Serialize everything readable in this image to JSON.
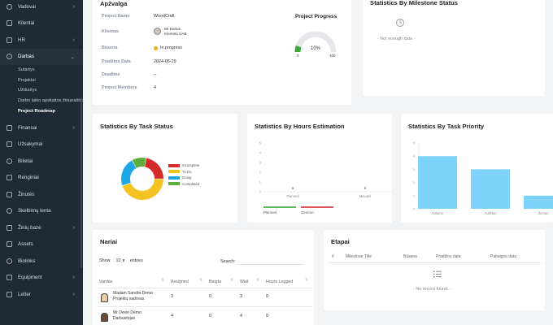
{
  "sidebar": {
    "items": [
      {
        "label": "Vadovai",
        "arrow": "›"
      },
      {
        "label": "Klientai",
        "arrow": ""
      },
      {
        "label": "HR",
        "arrow": "›"
      },
      {
        "label": "Darbas",
        "arrow": "⌄"
      },
      {
        "label": "Finansai",
        "arrow": "›"
      },
      {
        "label": "Užsakymai",
        "arrow": ""
      },
      {
        "label": "Bilietai",
        "arrow": ""
      },
      {
        "label": "Renginiai",
        "arrow": ""
      },
      {
        "label": "Žinutės",
        "arrow": ""
      },
      {
        "label": "Skelbimų lenta",
        "arrow": ""
      },
      {
        "label": "Žinių bazė",
        "arrow": "›"
      },
      {
        "label": "Assets",
        "arrow": ""
      },
      {
        "label": "Biolinks",
        "arrow": ""
      },
      {
        "label": "Equipment",
        "arrow": "›"
      },
      {
        "label": "Letter",
        "arrow": "›"
      }
    ],
    "subitems": [
      "Sutartys",
      "Projektai",
      "Užduotys",
      "Darbo laiko apskaitos žiniaraštis",
      "Project Roadmap"
    ]
  },
  "overview": {
    "title": "Apžvalga",
    "project_name_label": "Project Name",
    "project_name": "WoodCraft",
    "client_label": "Klientas",
    "client_name": "Mr Darius",
    "client_company": "Klemeta UAB",
    "status_label": "Būsena",
    "status": "In progress",
    "start_label": "Pradžios Data",
    "start_date": "2024-05-29",
    "deadline_label": "Deadline",
    "deadline": "--",
    "members_label": "Project Members",
    "members": "4",
    "progress_title": "Project Progress",
    "progress_percent": 10,
    "progress_text": "10%",
    "progress_min": "0",
    "progress_max": "100"
  },
  "milestone": {
    "title": "Statistics By Milestone Status",
    "empty": "- Not enough data -"
  },
  "task_status": {
    "title": "Statistics By Task Status",
    "legend": [
      "Incomplete",
      "To Do",
      "Doing",
      "Completed"
    ],
    "colors": [
      "#d42a2a",
      "#f5c321",
      "#1ea7e6",
      "#5cae3a"
    ]
  },
  "hours": {
    "title": "Statistics By Hours Estimation",
    "y_ticks": [
      "5",
      "4",
      "3",
      "2",
      "1",
      "0"
    ],
    "categories": [
      "Planned",
      "Minutės"
    ],
    "values": [
      "0",
      "0"
    ],
    "legend": [
      "Planned",
      "Overrun"
    ],
    "legend_colors": [
      "#5cb85c",
      "#e05555"
    ]
  },
  "priority": {
    "title": "Statistics By Task Priority",
    "y_ticks": [
      "5",
      "4",
      "3",
      "2",
      "1",
      "0"
    ],
    "categories": [
      "Volume",
      "Aukštas",
      "Žemas"
    ],
    "bar_color": "#7dd3fa"
  },
  "chart_data": [
    {
      "type": "bar",
      "title": "Statistics By Task Priority",
      "categories": [
        "Volume",
        "Aukštas",
        "Žemas"
      ],
      "values": [
        4,
        3,
        1
      ],
      "ylim": [
        0,
        5
      ]
    },
    {
      "type": "pie",
      "title": "Statistics By Task Status",
      "categories": [
        "Incomplete",
        "To Do",
        "Doing",
        "Completed"
      ],
      "values": [
        1,
        2,
        1,
        0.5
      ]
    },
    {
      "type": "bar",
      "title": "Statistics By Hours Estimation",
      "categories": [
        "Planned",
        "Minutės"
      ],
      "values": [
        0,
        0
      ],
      "ylim": [
        0,
        5
      ]
    }
  ],
  "members_card": {
    "title": "Nariai",
    "show": "Show",
    "entries_value": "10",
    "entries": "entries",
    "search_label": "Search:",
    "columns": [
      "Vardas",
      "Assigned",
      "Baigta",
      "Wait",
      "Hours Logged"
    ],
    "rows": [
      {
        "name": "Madam Sandra Demo",
        "role": "Projektų vadovas",
        "assigned": "3",
        "done": "0",
        "wait": "3",
        "hours": "0"
      },
      {
        "name": "Mr Devin Demo",
        "role": "Darbuotojas",
        "assigned": "4",
        "done": "0",
        "wait": "4",
        "hours": "0"
      }
    ]
  },
  "etapai": {
    "title": "Etapai",
    "columns": [
      "#",
      "Milestone Title",
      "Būsena",
      "Pradžios data",
      "Pabaigos data"
    ],
    "empty": "- No record found. -"
  }
}
